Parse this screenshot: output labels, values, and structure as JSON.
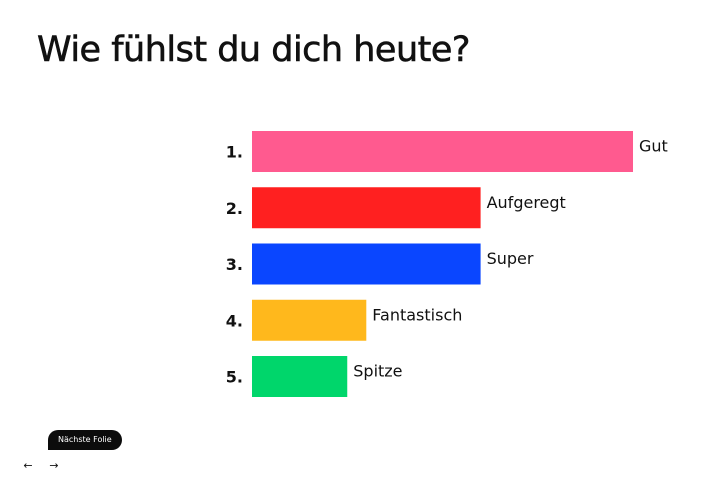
{
  "slide": {
    "title": "Wie fühlst du dich heute?"
  },
  "chart_data": {
    "type": "bar",
    "orientation": "horizontal",
    "title": "Wie fühlst du dich heute?",
    "ranks": [
      "1.",
      "2.",
      "3.",
      "4.",
      "5."
    ],
    "categories": [
      "Gut",
      "Aufgeregt",
      "Super",
      "Fantastisch",
      "Spitze"
    ],
    "values": [
      100,
      60,
      60,
      30,
      25
    ],
    "colors": [
      "#ff5a8f",
      "#ff2020",
      "#0a46ff",
      "#ffb81c",
      "#00d66b"
    ],
    "xlabel": "",
    "ylabel": "",
    "xlim": [
      0,
      100
    ],
    "grid": false,
    "legend": "none"
  },
  "controls": {
    "next_slide_tooltip": "Nächste Folie",
    "prev_arrow": "←",
    "next_arrow": "→",
    "icons": {
      "prev": "arrow-left-icon",
      "next": "arrow-right-icon"
    }
  }
}
